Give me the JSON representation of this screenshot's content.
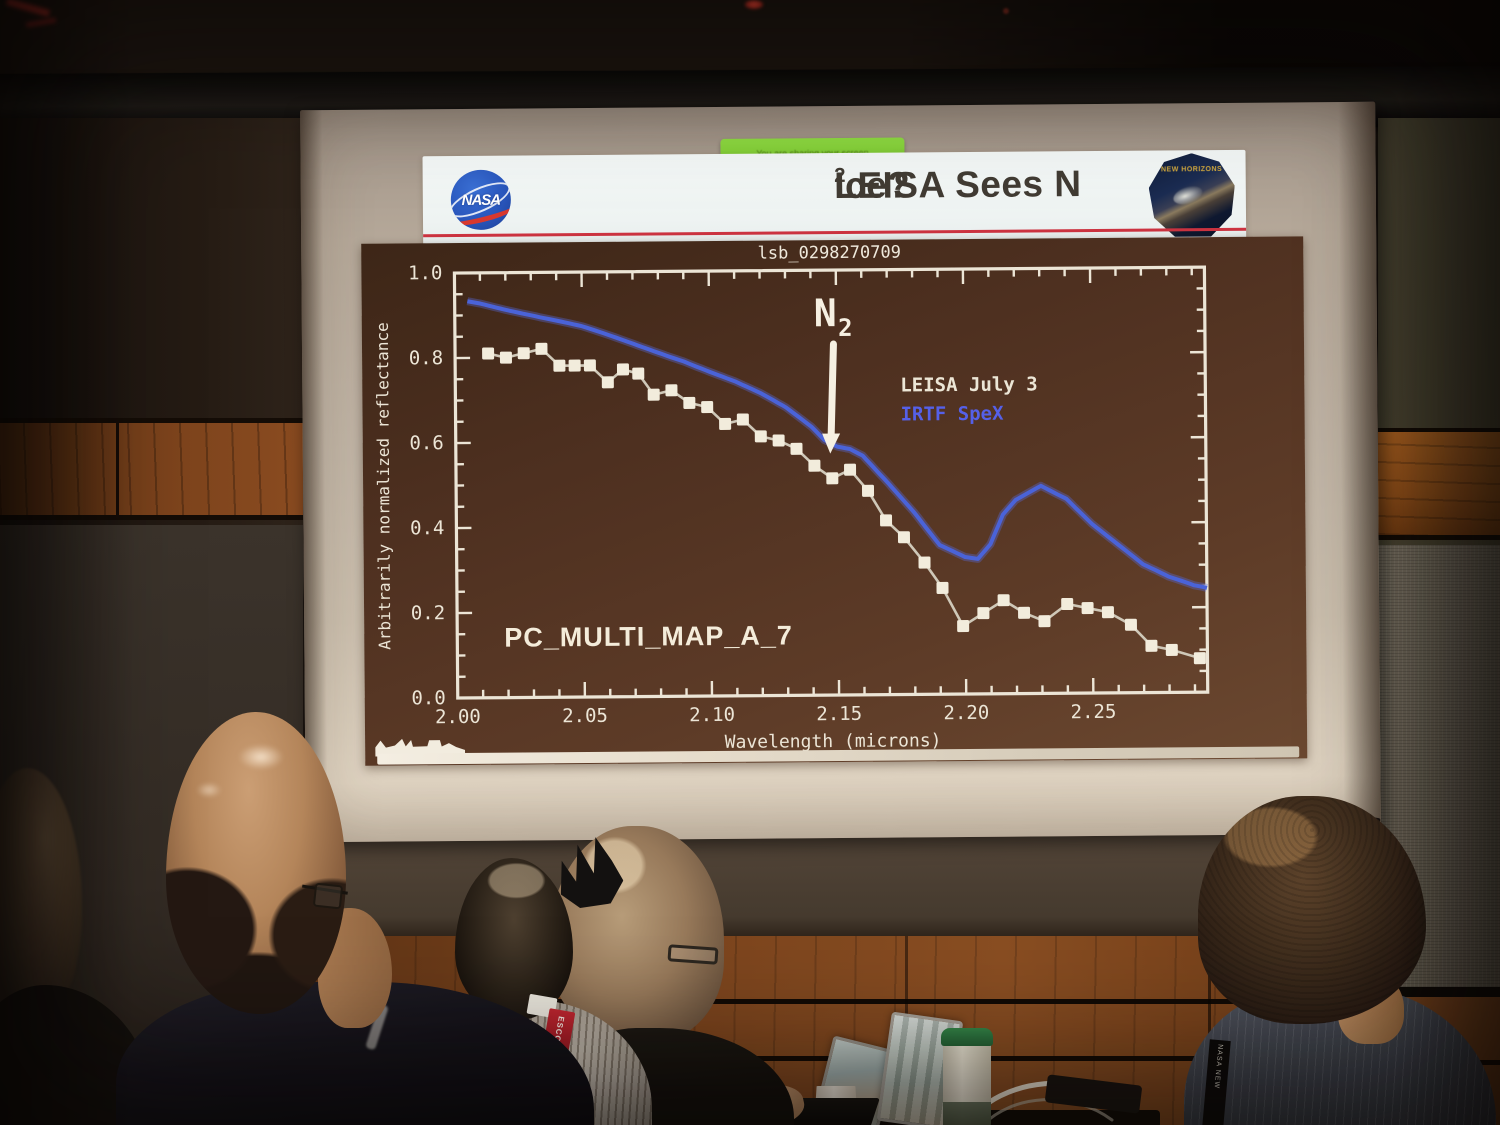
{
  "slide": {
    "share_banner": "You are sharing your screen",
    "nasa_wordmark": "NASA",
    "badge_text": "NEW HORIZONS",
    "title": {
      "pre": "LEISA Sees N",
      "sub": "2",
      "post": " Ice?"
    }
  },
  "room": {
    "escort_tag": "ESCORT",
    "lanyard_text": "NASA NEW"
  },
  "chart_data": {
    "type": "line",
    "title": "lsb_0298270709",
    "xlabel": "Wavelength (microns)",
    "ylabel": "Arbitrarily normalized reflectance",
    "watermark": "PC_MULTI_MAP_A_7",
    "xlim": [
      2.0,
      2.295
    ],
    "ylim": [
      0.0,
      1.0
    ],
    "x_major_ticks": [
      2.0,
      2.05,
      2.1,
      2.15,
      2.2,
      2.25
    ],
    "x_minor_step": 0.01,
    "y_major_ticks": [
      0.0,
      0.2,
      0.4,
      0.6,
      0.8,
      1.0
    ],
    "y_minor_step": 0.05,
    "grid": false,
    "legend_position": "inside upper-right area",
    "annotation": {
      "label_main": "N",
      "label_sub": "2",
      "x": 2.152,
      "arrow_tip_y": 0.62
    },
    "series": [
      {
        "name": "LEISA July 3",
        "color": "#f2ecdc",
        "line_color": "#cfc8b8",
        "marker": "square",
        "x": [
          2.013,
          2.02,
          2.027,
          2.034,
          2.041,
          2.047,
          2.053,
          2.06,
          2.066,
          2.072,
          2.078,
          2.085,
          2.092,
          2.099,
          2.106,
          2.113,
          2.12,
          2.127,
          2.134,
          2.141,
          2.148,
          2.155,
          2.162,
          2.169,
          2.176,
          2.184,
          2.191,
          2.199,
          2.207,
          2.215,
          2.223,
          2.231,
          2.24,
          2.248,
          2.256,
          2.265,
          2.273,
          2.281,
          2.292
        ],
        "y": [
          0.81,
          0.8,
          0.81,
          0.82,
          0.78,
          0.78,
          0.78,
          0.74,
          0.77,
          0.76,
          0.71,
          0.72,
          0.69,
          0.68,
          0.64,
          0.65,
          0.61,
          0.6,
          0.58,
          0.54,
          0.51,
          0.53,
          0.48,
          0.41,
          0.37,
          0.31,
          0.25,
          0.16,
          0.19,
          0.22,
          0.19,
          0.17,
          0.21,
          0.2,
          0.19,
          0.16,
          0.11,
          0.1,
          0.08
        ]
      },
      {
        "name": "IRTF SpeX",
        "color": "#5560e8",
        "line_color": "#4a63d8",
        "marker": "none",
        "x": [
          2.005,
          2.01,
          2.02,
          2.03,
          2.04,
          2.05,
          2.06,
          2.07,
          2.08,
          2.09,
          2.1,
          2.11,
          2.12,
          2.13,
          2.14,
          2.145,
          2.15,
          2.155,
          2.16,
          2.17,
          2.18,
          2.19,
          2.2,
          2.205,
          2.21,
          2.215,
          2.22,
          2.23,
          2.24,
          2.25,
          2.26,
          2.27,
          2.28,
          2.29,
          2.295
        ],
        "y": [
          0.935,
          0.93,
          0.915,
          0.9,
          0.885,
          0.87,
          0.85,
          0.83,
          0.81,
          0.79,
          0.765,
          0.74,
          0.71,
          0.675,
          0.63,
          0.6,
          0.585,
          0.58,
          0.565,
          0.5,
          0.43,
          0.35,
          0.32,
          0.315,
          0.35,
          0.42,
          0.455,
          0.49,
          0.46,
          0.4,
          0.35,
          0.3,
          0.27,
          0.25,
          0.245
        ]
      }
    ]
  }
}
